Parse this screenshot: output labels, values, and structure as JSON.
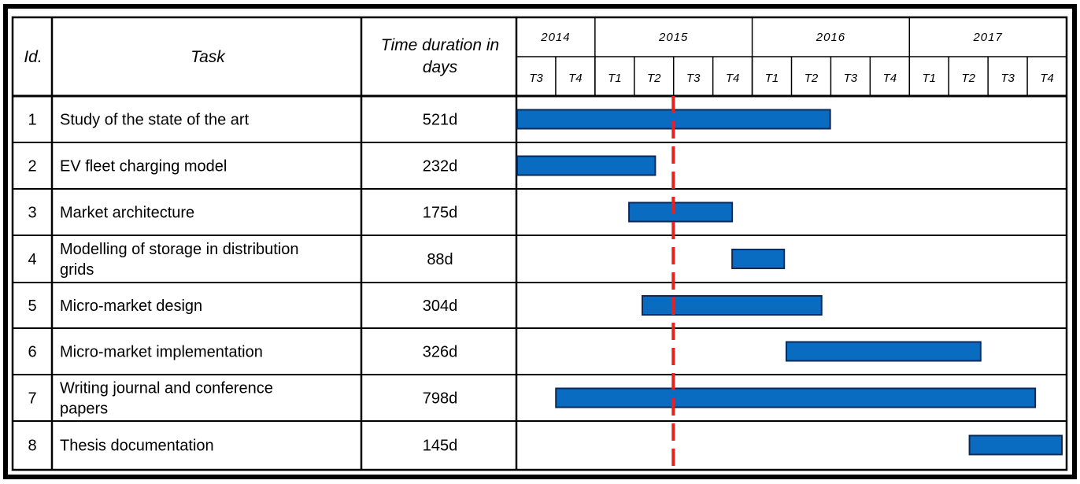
{
  "table": {
    "headers": {
      "id": "Id.",
      "task": "Task",
      "duration_line1": "Time duration in",
      "duration_line2": "days"
    }
  },
  "colors": {
    "bar_fill": "#0a6cc1",
    "bar_border": "#0b2a5a",
    "today_line": "#e8211c",
    "grid": "#000000"
  },
  "chart_data": {
    "type": "gantt",
    "years": [
      {
        "label": "2014",
        "quarters": 2
      },
      {
        "label": "2015",
        "quarters": 4
      },
      {
        "label": "2016",
        "quarters": 4
      },
      {
        "label": "2017",
        "quarters": 4
      }
    ],
    "quarters": [
      "T3",
      "T4",
      "T1",
      "T2",
      "T3",
      "T4",
      "T1",
      "T2",
      "T3",
      "T4",
      "T1",
      "T2",
      "T3",
      "T4"
    ],
    "timeline_start": "2014-07-01",
    "timeline_end": "2017-12-31",
    "today_marker": "2015-07-01",
    "tasks": [
      {
        "id": "1",
        "name": "Study of the state of the art",
        "duration": "521d",
        "start": "2014-07-01",
        "end": "2016-06-30"
      },
      {
        "id": "2",
        "name": "EV fleet charging model",
        "duration": "232d",
        "start": "2014-07-01",
        "end": "2015-05-20"
      },
      {
        "id": "3",
        "name": "Market architecture",
        "duration": "175d",
        "start": "2015-03-20",
        "end": "2015-11-15"
      },
      {
        "id": "4",
        "name": "Modelling of storage in distribution grids",
        "duration": "88d",
        "start": "2015-11-15",
        "end": "2016-03-15"
      },
      {
        "id": "5",
        "name": "Micro-market design",
        "duration": "304d",
        "start": "2015-04-20",
        "end": "2016-06-10"
      },
      {
        "id": "6",
        "name": "Micro-market implementation",
        "duration": "326d",
        "start": "2016-03-20",
        "end": "2017-06-15"
      },
      {
        "id": "7",
        "name": "Writing journal and conference papers",
        "duration": "798d",
        "start": "2014-10-01",
        "end": "2017-10-20"
      },
      {
        "id": "8",
        "name": "Thesis documentation",
        "duration": "145d",
        "start": "2017-05-20",
        "end": "2017-12-31"
      }
    ]
  }
}
